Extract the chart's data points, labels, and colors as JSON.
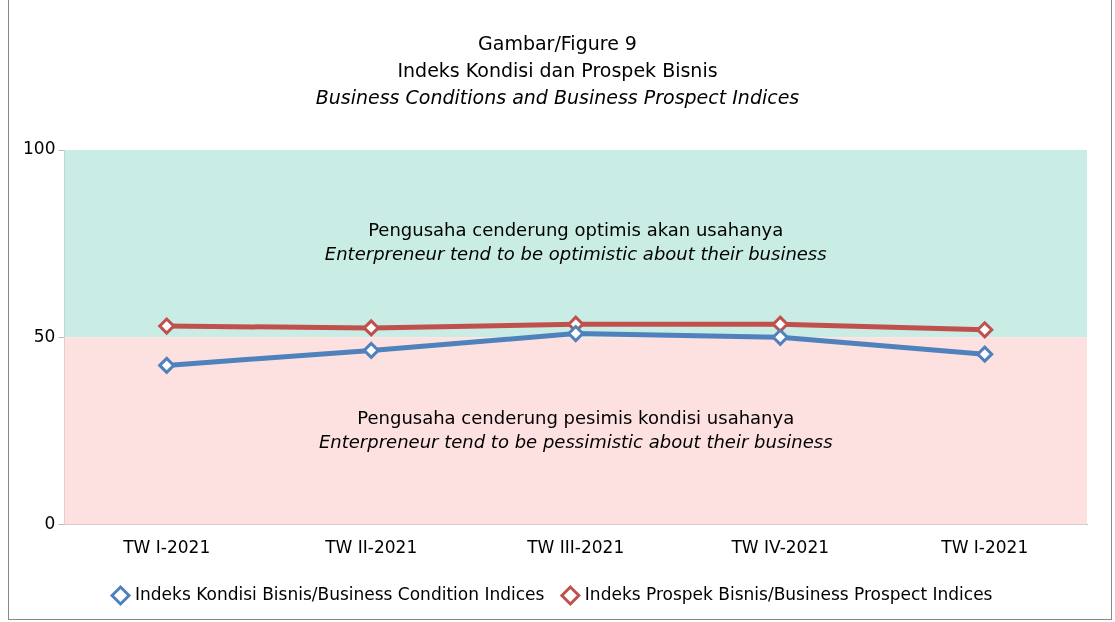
{
  "chart_data": {
    "type": "line",
    "title": "Gambar/Figure 9\nIndeks Kondisi dan Prospek Bisnis",
    "subtitle": "Business Conditions and Business Prospect Indices",
    "categories": [
      "TW I-2021",
      "TW II-2021",
      "TW III-2021",
      "TW IV-2021",
      "TW I-2021"
    ],
    "series": [
      {
        "name": "Indeks Kondisi Bisnis/Business Condition Indices",
        "color": "#4f81bd",
        "values": [
          42.5,
          46.5,
          51,
          50,
          45.5
        ]
      },
      {
        "name": "Indeks Prospek Bisnis/Business Prospect Indices",
        "color": "#c0504d",
        "values": [
          53,
          52.5,
          53.5,
          53.5,
          52
        ]
      }
    ],
    "ylim": [
      0,
      100
    ],
    "yticks": [
      0,
      50,
      100
    ],
    "grid": false,
    "legend": "bottom",
    "marker": "diamond",
    "line_style": "solid",
    "bands": [
      {
        "axis": "y",
        "from": 50,
        "to": 100,
        "label": "Pengusaha cenderung optimis akan usahanya\nEnterpreneur tend to be optimistic about their business",
        "color": "#c9ede4"
      },
      {
        "axis": "y",
        "from": 0,
        "to": 50,
        "label": "Pengusaha cenderung pesimis kondisi usahanya\nEnterpreneur tend to be pessimistic about their business",
        "color": "#fde0e0"
      }
    ]
  }
}
